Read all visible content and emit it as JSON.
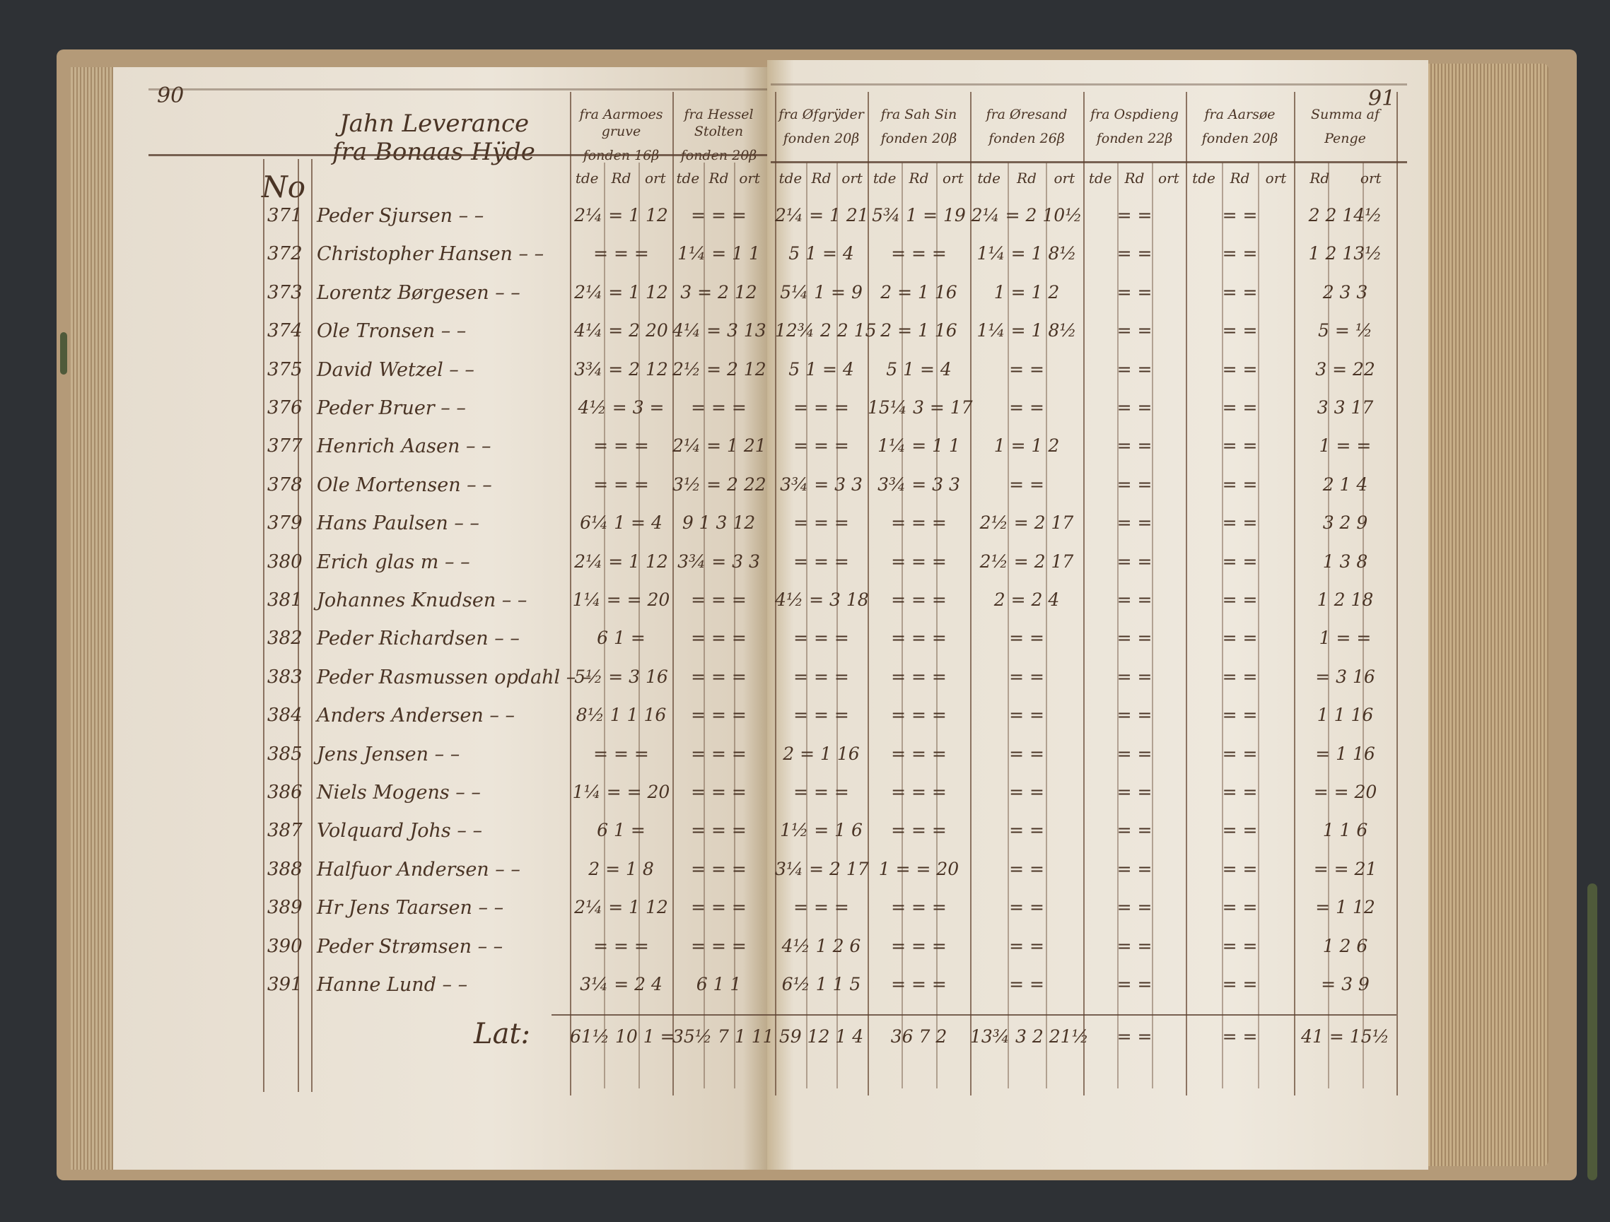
{
  "left_page_number": "90",
  "right_page_number": "91",
  "title_line1": "Jahn Leverance",
  "title_line2": "fra Bonaas Hÿde",
  "no_label": "No",
  "subheads": [
    "tde",
    "Rd",
    "ort"
  ],
  "column_headers": [
    {
      "line1": "fra Aarmoes gruve",
      "line2": "fonden 16β"
    },
    {
      "line1": "fra Hessel Stolten",
      "line2": "fonden 20β"
    },
    {
      "line1": "fra Øfgrÿder",
      "line2": "fonden 20β"
    },
    {
      "line1": "fra Sah Sin",
      "line2": "fonden 20β"
    },
    {
      "line1": "fra Øresand",
      "line2": "fonden 26β"
    },
    {
      "line1": "fra Ospdieng",
      "line2": "fonden 22β"
    },
    {
      "line1": "fra Aarsøe",
      "line2": "fonden 20β"
    },
    {
      "line1": "Summa af",
      "line2": "Penge"
    }
  ],
  "summa_subheads": [
    "Rd",
    "ort"
  ],
  "rows": [
    {
      "no": "371",
      "name": "Peder Sjursen",
      "cells": [
        "2¼ = 1 12",
        "= = =",
        "2¼ = 1 21",
        "5¾ 1 = 19",
        "2¼ = 2 10½",
        "= =",
        "= =",
        "2 2 14½"
      ]
    },
    {
      "no": "372",
      "name": "Christopher Hansen",
      "cells": [
        "= = =",
        "1¼ = 1 1",
        "5 1 = 4",
        "= = =",
        "1¼ = 1 8½",
        "= =",
        "= =",
        "1 2 13½"
      ]
    },
    {
      "no": "373",
      "name": "Lorentz Børgesen",
      "cells": [
        "2¼ = 1 12",
        "3 = 2 12",
        "5¼ 1 = 9",
        "2 = 1 16",
        "1 = 1 2",
        "= =",
        "= =",
        "2 3 3"
      ]
    },
    {
      "no": "374",
      "name": "Ole Tronsen",
      "cells": [
        "4¼ = 2 20",
        "4¼ = 3 13",
        "12¾ 2 2 15",
        "2 = 1 16",
        "1¼ = 1 8½",
        "= =",
        "= =",
        "5 = ½"
      ]
    },
    {
      "no": "375",
      "name": "David Wetzel",
      "cells": [
        "3¾ = 2 12",
        "2½ = 2 12",
        "5 1 = 4",
        "5 1 = 4",
        "= =",
        "= =",
        "= =",
        "3 = 22"
      ]
    },
    {
      "no": "376",
      "name": "Peder Bruer",
      "cells": [
        "4½ = 3 =",
        "= = =",
        "= = =",
        "15¼ 3 = 17",
        "= =",
        "= =",
        "= =",
        "3 3 17"
      ]
    },
    {
      "no": "377",
      "name": "Henrich Aasen",
      "cells": [
        "= = =",
        "2¼ = 1 21",
        "= = =",
        "1¼ = 1 1",
        "1 = 1 2",
        "= =",
        "= =",
        "1 = ="
      ]
    },
    {
      "no": "378",
      "name": "Ole Mortensen",
      "cells": [
        "= = =",
        "3½ = 2 22",
        "3¾ = 3 3",
        "3¾ = 3 3",
        "= =",
        "= =",
        "= =",
        "2 1 4"
      ]
    },
    {
      "no": "379",
      "name": "Hans Paulsen",
      "cells": [
        "6¼ 1 = 4",
        "9 1 3 12",
        "= = =",
        "= = =",
        "2½ = 2 17",
        "= =",
        "= =",
        "3 2 9"
      ]
    },
    {
      "no": "380",
      "name": "Erich glas m",
      "cells": [
        "2¼ = 1 12",
        "3¾ = 3 3",
        "= = =",
        "= = =",
        "2½ = 2 17",
        "= =",
        "= =",
        "1 3 8"
      ]
    },
    {
      "no": "381",
      "name": "Johannes Knudsen",
      "cells": [
        "1¼ = = 20",
        "= = =",
        "4½ = 3 18",
        "= = =",
        "2 = 2 4",
        "= =",
        "= =",
        "1 2 18"
      ]
    },
    {
      "no": "382",
      "name": "Peder Richardsen",
      "cells": [
        "6 1 =",
        "= = =",
        "= = =",
        "= = =",
        "= =",
        "= =",
        "= =",
        "1 = ="
      ]
    },
    {
      "no": "383",
      "name": "Peder Rasmussen opdahl",
      "cells": [
        "5½ = 3 16",
        "= = =",
        "= = =",
        "= = =",
        "= =",
        "= =",
        "= =",
        "= 3 16"
      ]
    },
    {
      "no": "384",
      "name": "Anders Andersen",
      "cells": [
        "8½ 1 1 16",
        "= = =",
        "= = =",
        "= = =",
        "= =",
        "= =",
        "= =",
        "1 1 16"
      ]
    },
    {
      "no": "385",
      "name": "Jens Jensen",
      "cells": [
        "= = =",
        "= = =",
        "2 = 1 16",
        "= = =",
        "= =",
        "= =",
        "= =",
        "= 1 16"
      ]
    },
    {
      "no": "386",
      "name": "Niels Mogens",
      "cells": [
        "1¼ = = 20",
        "= = =",
        "= = =",
        "= = =",
        "= =",
        "= =",
        "= =",
        "= = 20"
      ]
    },
    {
      "no": "387",
      "name": "Volquard Johs",
      "cells": [
        "6 1 =",
        "= = =",
        "1½ = 1 6",
        "= = =",
        "= =",
        "= =",
        "= =",
        "1 1 6"
      ]
    },
    {
      "no": "388",
      "name": "Halfuor Andersen",
      "cells": [
        "2 = 1 8",
        "= = =",
        "3¼ = 2 17",
        "1 = = 20",
        "= =",
        "= =",
        "= =",
        "= = 21"
      ]
    },
    {
      "no": "389",
      "name": "Hr Jens Taarsen",
      "cells": [
        "2¼ = 1 12",
        "= = =",
        "= = =",
        "= = =",
        "= =",
        "= =",
        "= =",
        "= 1 12"
      ]
    },
    {
      "no": "390",
      "name": "Peder Strømsen",
      "cells": [
        "= = =",
        "= = =",
        "4½ 1 2 6",
        "= = =",
        "= =",
        "= =",
        "= =",
        "1 2 6"
      ]
    },
    {
      "no": "391",
      "name": "Hanne Lund",
      "cells": [
        "3¼ = 2 4",
        "6 1 1",
        "6½ 1 1 5",
        "= = =",
        "= =",
        "= =",
        "= =",
        "= 3 9"
      ]
    }
  ],
  "totals_label": "Lat:",
  "totals": [
    "61½ 10 1 =",
    "35½ 7 1 11",
    "59 12 1 4",
    "36 7 2",
    "13¾ 3 2 21½",
    "= =",
    "= =",
    "41 = 15½"
  ],
  "colors": {
    "ink": "#4a3425",
    "paper": "#ece5d9",
    "background": "#2e3135"
  }
}
